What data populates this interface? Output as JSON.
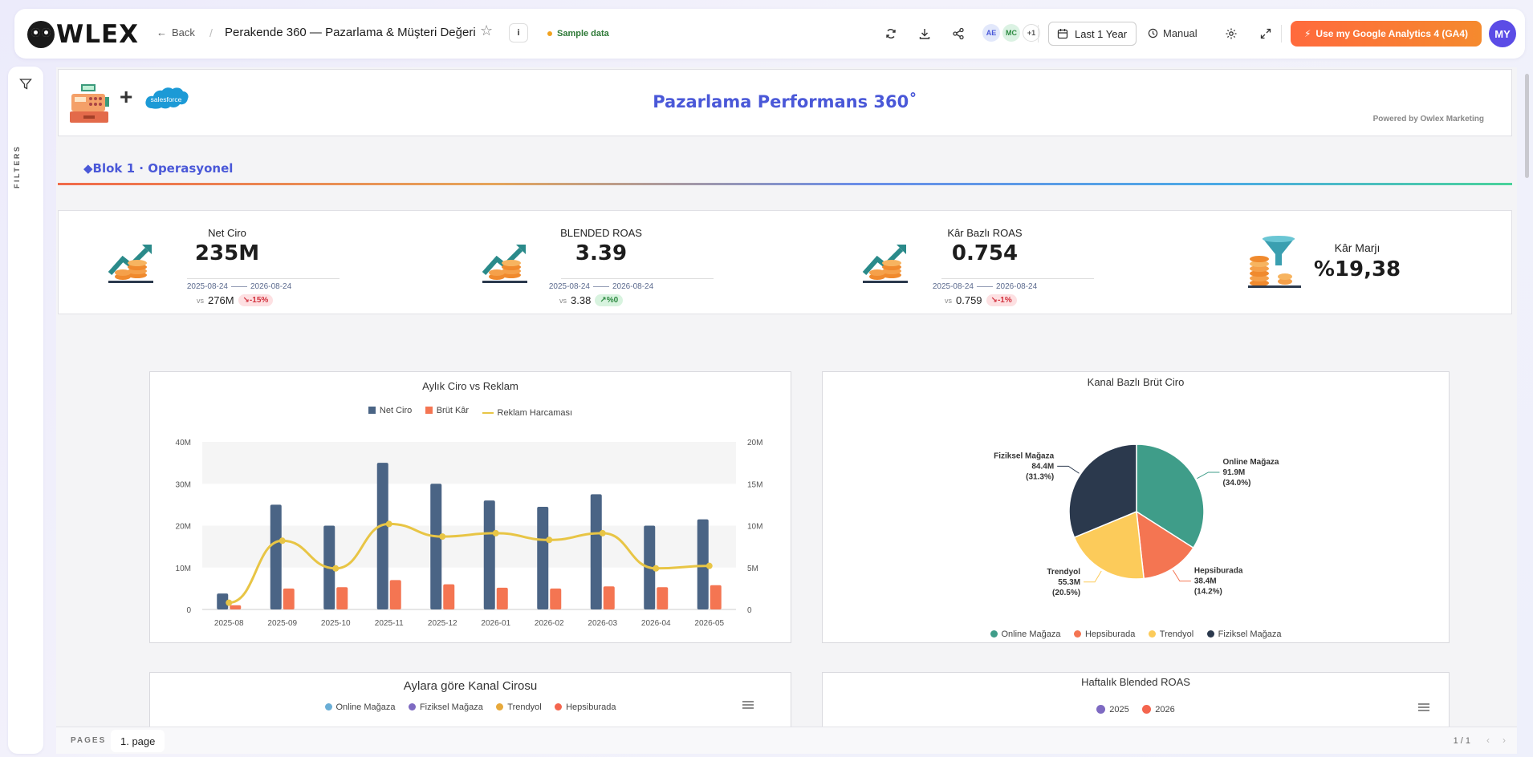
{
  "app": {
    "logo_text": "WLEX"
  },
  "topbar": {
    "back_label": "Back",
    "title": "Perakende 360 — Pazarlama & Müşteri Değeri",
    "sample_label": "Sample data",
    "avatars": [
      "AE",
      "MC",
      "+1"
    ],
    "range_label": "Last 1 Year",
    "manual_label": "Manual",
    "ga_button_label": "Use my Google Analytics 4 (GA4)",
    "user_initials": "MY"
  },
  "rail": {
    "label": "FILTERS"
  },
  "header": {
    "title": "Pazarlama Performans 360˚",
    "powered_by": "Powered by Owlex Marketing",
    "salesforce_text": "salesforce"
  },
  "section": {
    "label": "◆Blok 1 · Operasyonel"
  },
  "kpis": [
    {
      "label": "Net Ciro",
      "value": "235M",
      "date_from": "2025-08-24",
      "date_to": "2026-08-24",
      "vs_label": "vs",
      "vs_value": "276M",
      "delta": "-15%",
      "trend": "down"
    },
    {
      "label": "BLENDED ROAS",
      "value": "3.39",
      "date_from": "2025-08-24",
      "date_to": "2026-08-24",
      "vs_label": "vs",
      "vs_value": "3.38",
      "delta": "%0",
      "trend": "up"
    },
    {
      "label": "Kâr Bazlı ROAS",
      "value": "0.754",
      "date_from": "2025-08-24",
      "date_to": "2026-08-24",
      "vs_label": "vs",
      "vs_value": "0.759",
      "delta": "-1%",
      "trend": "down"
    },
    {
      "label": "Kâr Marjı",
      "value": "%19,38"
    }
  ],
  "colors": {
    "navy": "#4a6485",
    "orange": "#f47552",
    "yellow": "#e8c545",
    "teal": "#3f9d89",
    "pie_orange": "#f47552",
    "pie_yellow": "#fccb5a",
    "pie_dark": "#2b394d",
    "accent": "#4a58d8"
  },
  "chart_data": [
    {
      "type": "bar",
      "title": "Aylık Ciro vs Reklam",
      "categories": [
        "2025-08",
        "2025-09",
        "2025-10",
        "2025-11",
        "2025-12",
        "2026-01",
        "2026-02",
        "2026-03",
        "2026-04",
        "2026-05"
      ],
      "series": [
        {
          "name": "Net Ciro",
          "axis": "left",
          "type": "bar",
          "values": [
            3.8,
            25,
            20,
            35,
            30,
            26,
            24.5,
            27.5,
            20,
            21.5
          ]
        },
        {
          "name": "Brüt Kâr",
          "axis": "left",
          "type": "bar",
          "values": [
            1.0,
            5,
            5.3,
            7,
            6,
            5.2,
            5,
            5.5,
            5.3,
            5.8
          ]
        },
        {
          "name": "Reklam Harcaması",
          "axis": "right",
          "type": "line",
          "values": [
            0.8,
            8.2,
            4.9,
            10.2,
            8.7,
            9.1,
            8.3,
            9.1,
            4.9,
            5.2
          ]
        }
      ],
      "y_left_ticks": [
        "0",
        "10M",
        "20M",
        "30M",
        "40M"
      ],
      "y_right_ticks": [
        "0",
        "5M",
        "10M",
        "15M",
        "20M"
      ],
      "ylim_left": [
        0,
        40
      ],
      "ylim_right": [
        0,
        20
      ],
      "legend_position": "top-center"
    },
    {
      "type": "pie",
      "title": "Kanal Bazlı Brüt Ciro",
      "slices": [
        {
          "name": "Online Mağaza",
          "value": 91.9,
          "value_label": "91.9M",
          "pct_label": "(34.0%)"
        },
        {
          "name": "Hepsiburada",
          "value": 38.4,
          "value_label": "38.4M",
          "pct_label": "(14.2%)"
        },
        {
          "name": "Trendyol",
          "value": 55.3,
          "value_label": "55.3M",
          "pct_label": "(20.5%)"
        },
        {
          "name": "Fiziksel Mağaza",
          "value": 84.4,
          "value_label": "84.4M",
          "pct_label": "(31.3%)"
        }
      ],
      "legend_position": "bottom"
    }
  ],
  "lower_charts": [
    {
      "title": "Aylara göre Kanal Cirosu",
      "legend": [
        "Online Mağaza",
        "Fiziksel Mağaza",
        "Trendyol",
        "Hepsiburada"
      ],
      "legend_colors": [
        "#6aaed6",
        "#7e6ac2",
        "#e7a93b",
        "#f4654e"
      ]
    },
    {
      "title": "Haftalık Blended ROAS",
      "legend": [
        "2025",
        "2026"
      ],
      "legend_colors": [
        "#7e6ac2",
        "#f4654e"
      ]
    }
  ],
  "pages": {
    "label": "PAGES",
    "current": "1. page",
    "count": "1 / 1"
  }
}
